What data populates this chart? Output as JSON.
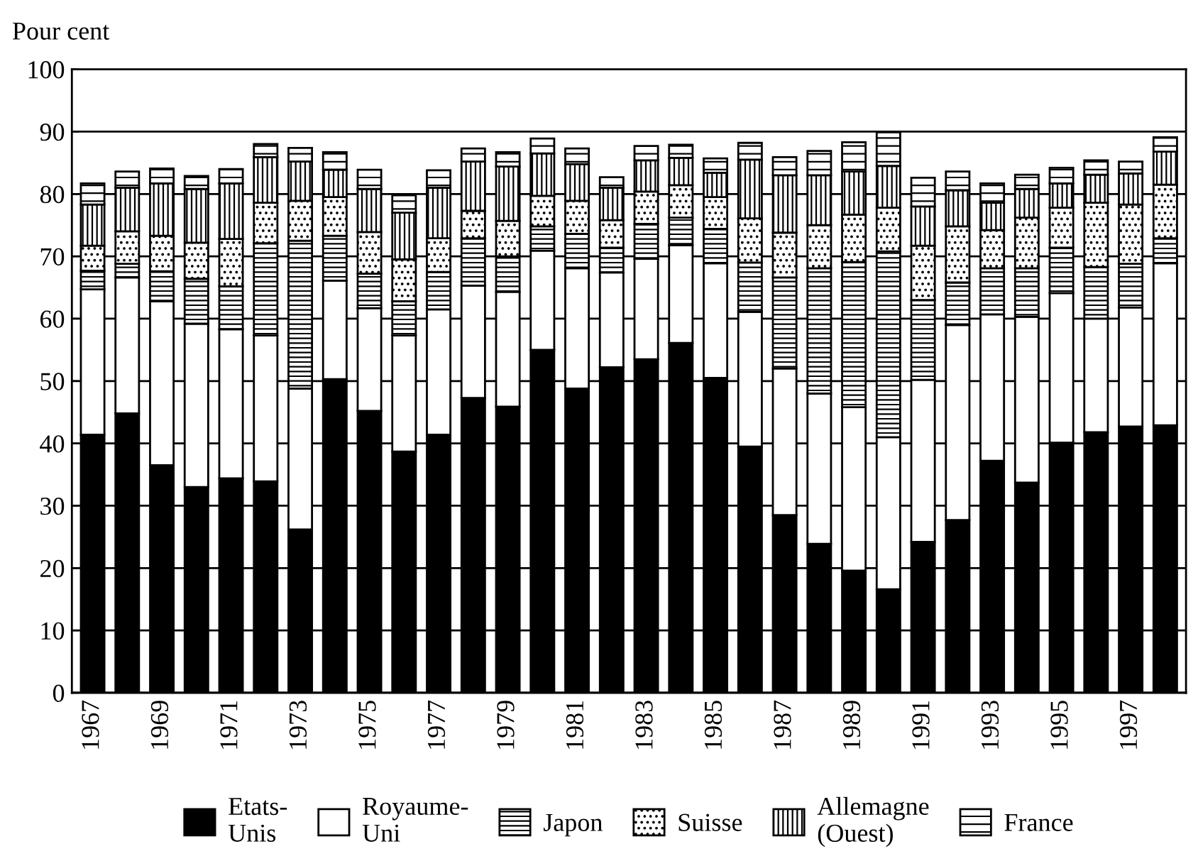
{
  "chart_data": {
    "type": "bar",
    "stacked": true,
    "ylabel": "Pour cent",
    "categories": [
      "1967",
      null,
      "1969",
      null,
      "1971",
      null,
      "1973",
      null,
      "1975",
      null,
      "1977",
      null,
      "1979",
      null,
      "1981",
      null,
      "1983",
      null,
      "1985",
      null,
      "1987",
      null,
      "1989",
      null,
      "1991",
      null,
      "1993",
      null,
      "1995",
      null,
      "1997",
      null
    ],
    "series": [
      {
        "name": "Etats-\nUnis",
        "color": "#000000",
        "values": [
          41.4,
          44.8,
          36.5,
          33.0,
          34.4,
          33.9,
          26.2,
          50.3,
          45.2,
          38.7,
          41.4,
          47.3,
          45.9,
          55.0,
          48.8,
          52.2,
          53.5,
          56.1,
          50.5,
          39.5,
          28.5,
          23.9,
          19.6,
          16.6,
          24.2,
          27.7,
          37.2,
          33.7,
          40.1,
          41.8,
          42.7,
          42.9
        ]
      },
      {
        "name": "Royaume-\nUni",
        "color": "#ffffff",
        "values": [
          23.3,
          21.8,
          26.3,
          26.2,
          23.9,
          23.4,
          22.6,
          15.8,
          16.5,
          18.6,
          20.1,
          18.0,
          18.4,
          15.9,
          19.3,
          15.2,
          16.1,
          15.7,
          18.4,
          21.6,
          23.5,
          24.1,
          26.2,
          24.4,
          26.0,
          31.3,
          23.5,
          26.6,
          24.0,
          18.2,
          19.1,
          26.0
        ]
      },
      {
        "name": "Japon",
        "color": "#000000",
        "values": [
          3.0,
          2.2,
          4.8,
          7.2,
          6.9,
          14.8,
          23.7,
          7.2,
          5.5,
          5.5,
          6.0,
          7.6,
          5.7,
          3.9,
          5.5,
          4.0,
          5.6,
          4.4,
          5.5,
          7.9,
          14.6,
          20.1,
          23.3,
          29.8,
          12.8,
          6.8,
          7.4,
          7.8,
          7.3,
          8.3,
          7.0,
          4.0
        ]
      },
      {
        "name": "Suisse",
        "color": "#000000",
        "values": [
          4.0,
          5.2,
          5.7,
          5.8,
          7.6,
          6.5,
          6.4,
          6.2,
          6.7,
          6.7,
          5.4,
          4.4,
          5.7,
          4.9,
          5.3,
          4.4,
          5.2,
          5.2,
          5.1,
          7.1,
          7.2,
          6.9,
          7.6,
          7.0,
          8.7,
          9.0,
          6.1,
          8.1,
          6.4,
          10.3,
          9.5,
          8.6
        ]
      },
      {
        "name": "Allemagne\n(Ouest)",
        "color": "#000000",
        "values": [
          6.6,
          7.0,
          8.4,
          8.6,
          8.9,
          7.3,
          6.3,
          4.4,
          6.9,
          7.5,
          8.1,
          7.9,
          8.7,
          6.8,
          5.9,
          5.2,
          5.0,
          4.4,
          3.9,
          9.4,
          9.2,
          8.0,
          6.9,
          6.7,
          6.3,
          5.8,
          4.4,
          4.6,
          3.9,
          4.5,
          5.0,
          5.3
        ]
      },
      {
        "name": "France",
        "color": "#000000",
        "values": [
          3.4,
          2.6,
          2.4,
          2.1,
          2.3,
          2.1,
          2.2,
          2.8,
          3.1,
          2.8,
          2.8,
          2.1,
          2.3,
          2.4,
          2.5,
          1.7,
          2.3,
          2.1,
          2.3,
          2.7,
          2.9,
          3.9,
          4.7,
          5.4,
          4.6,
          3.0,
          3.1,
          2.3,
          2.5,
          2.3,
          1.9,
          2.3
        ]
      }
    ],
    "ylim": [
      0,
      100
    ],
    "yticks": [
      0,
      10,
      20,
      30,
      40,
      50,
      60,
      70,
      80,
      90,
      100
    ],
    "grid": "y",
    "legend": "bottom"
  }
}
